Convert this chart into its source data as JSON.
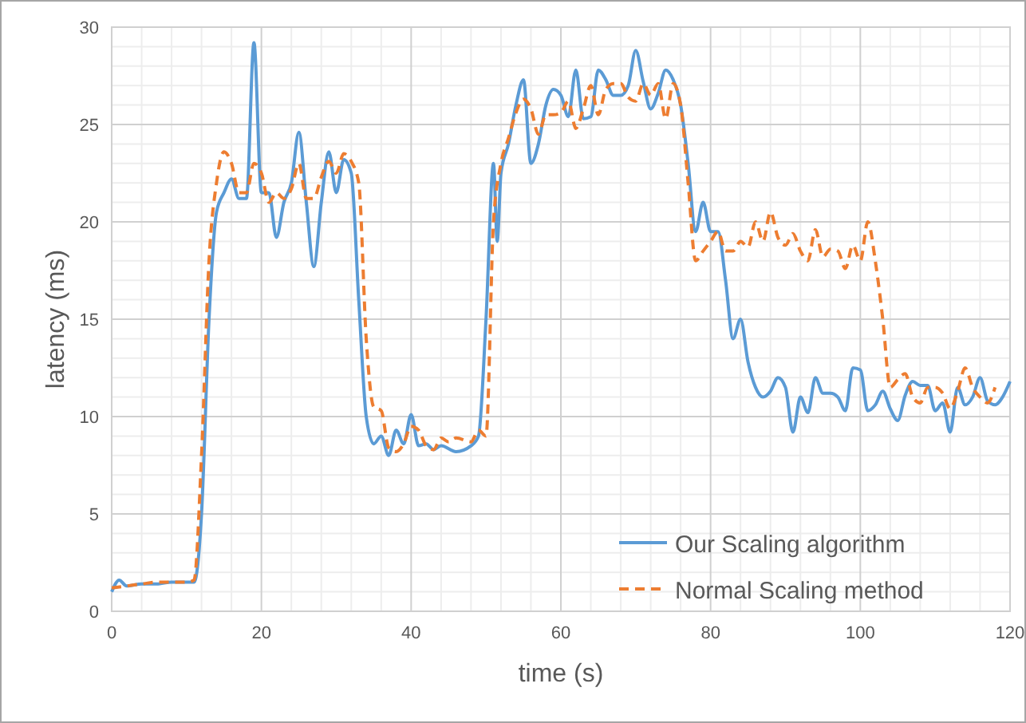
{
  "chart_data": {
    "type": "line",
    "xlabel": "time (s)",
    "ylabel": "latency (ms)",
    "xlim": [
      0,
      120
    ],
    "xticks": [
      0,
      20,
      40,
      60,
      80,
      100,
      120
    ],
    "ylim": [
      0,
      30
    ],
    "yticks": [
      0,
      5,
      10,
      15,
      20,
      25,
      30
    ],
    "grid": true,
    "legend": "bottom right",
    "marker": "none",
    "series": [
      {
        "name": "Our Scaling algorithm",
        "color": "#5b9bd5",
        "line_style": "solid",
        "x": [
          0,
          1,
          2,
          4,
          6,
          8,
          10,
          11,
          12,
          13,
          14,
          15,
          16,
          17,
          18,
          19,
          20,
          21,
          22,
          23,
          24,
          25,
          26,
          27,
          28,
          29,
          30,
          31,
          32,
          33,
          34,
          35,
          36,
          37,
          38,
          39,
          40,
          41,
          42,
          43,
          44,
          46,
          48,
          49,
          50,
          51,
          51.5,
          52,
          53,
          54,
          55,
          56,
          57,
          58,
          59,
          60,
          61,
          62,
          63,
          64,
          65,
          66,
          67,
          68,
          69,
          70,
          71,
          72,
          73,
          74,
          75,
          76,
          77,
          78,
          79,
          80,
          81,
          82,
          83,
          84,
          85,
          86,
          87,
          88,
          89,
          90,
          91,
          92,
          93,
          94,
          95,
          96,
          97,
          98,
          99,
          100,
          101,
          102,
          103,
          104,
          105,
          106,
          107,
          108,
          109,
          110,
          111,
          112,
          113,
          114,
          115,
          116,
          117,
          118,
          119,
          120
        ],
        "values": [
          1.0,
          1.6,
          1.3,
          1.4,
          1.4,
          1.5,
          1.5,
          1.5,
          5,
          15,
          20.5,
          21.5,
          22.2,
          21.2,
          21.2,
          29.2,
          21.5,
          21.5,
          19.2,
          21,
          22,
          24.6,
          21,
          17.7,
          21,
          23.6,
          21.5,
          23.2,
          22.5,
          16,
          10,
          8.6,
          9,
          8,
          9.3,
          8.6,
          10.1,
          8.5,
          8.6,
          8.3,
          8.5,
          8.2,
          8.5,
          9,
          15,
          23,
          19,
          22.5,
          24,
          26,
          27.3,
          23,
          24,
          26,
          26.8,
          26.5,
          25.4,
          27.8,
          25.3,
          25.4,
          27.8,
          27.3,
          26.5,
          26.5,
          27,
          28.8,
          27.2,
          25.8,
          26.6,
          27.8,
          27.3,
          26,
          23,
          19.5,
          21,
          19.5,
          19.5,
          17,
          14,
          15,
          12.8,
          11.5,
          11,
          11.3,
          12,
          11.5,
          9.2,
          11,
          10.2,
          12,
          11.2,
          11.2,
          11,
          10.3,
          12.5,
          12.4,
          10.3,
          10.6,
          11.3,
          10.4,
          9.8,
          11.1,
          11.8,
          11.6,
          11.6,
          10.3,
          10.7,
          9.2,
          11.5,
          10.6,
          11,
          12,
          10.8,
          10.6,
          11,
          11.8
        ]
      },
      {
        "name": "Normal Scaling method",
        "color": "#ed7d31",
        "line_style": "dashed",
        "x": [
          0,
          2,
          4,
          6,
          8,
          10,
          11,
          12,
          13,
          14,
          15,
          16,
          17,
          18,
          19,
          20,
          21,
          22,
          23,
          24,
          25,
          26,
          27,
          28,
          29,
          30,
          31,
          32,
          33,
          34,
          35,
          36,
          37,
          38,
          39,
          40,
          41,
          42,
          43,
          44,
          45,
          46,
          48,
          49,
          50,
          51,
          52,
          53,
          54,
          55,
          56,
          57,
          58,
          59,
          60,
          61,
          62,
          63,
          64,
          65,
          66,
          67,
          68,
          69,
          70,
          71,
          72,
          73,
          74,
          75,
          76,
          77,
          78,
          79,
          80,
          81,
          82,
          83,
          84,
          85,
          86,
          87,
          88,
          89,
          90,
          91,
          92,
          93,
          94,
          95,
          96,
          97,
          98,
          99,
          100,
          101,
          102,
          103,
          104,
          105,
          106,
          107,
          108,
          109,
          110,
          111,
          112,
          113,
          114,
          115,
          116,
          117,
          118
        ],
        "values": [
          1.2,
          1.3,
          1.4,
          1.5,
          1.5,
          1.5,
          1.6,
          8,
          18,
          22,
          23.6,
          23,
          21.5,
          21.5,
          23,
          22.5,
          21,
          21.5,
          21.2,
          21.7,
          23,
          21.2,
          21.2,
          22.3,
          23.1,
          22.5,
          23.5,
          23.1,
          22,
          14,
          10.5,
          10.3,
          8.4,
          8.2,
          8.6,
          9.5,
          9.3,
          8.5,
          8.3,
          8.9,
          8.7,
          8.9,
          8.7,
          9.3,
          9,
          20,
          23,
          24.3,
          25.6,
          26.3,
          25.8,
          24.5,
          25.5,
          25.5,
          25.6,
          26.2,
          24.8,
          25.8,
          27,
          25.5,
          26.8,
          27.1,
          27.1,
          26.4,
          26.2,
          27.1,
          26.5,
          27.1,
          25.3,
          27.1,
          26,
          22,
          18,
          18.5,
          19,
          19.5,
          18.5,
          18.5,
          19,
          18.7,
          20,
          19,
          20.5,
          19.2,
          18.8,
          19.4,
          18.5,
          18,
          19.6,
          18.2,
          18.6,
          18.5,
          17.6,
          18.8,
          18,
          20,
          18,
          15,
          11.5,
          11.9,
          12.2,
          11,
          10.7,
          11.5,
          11.5,
          11.2,
          10.4,
          11.3,
          12.5,
          11.5,
          11,
          10.7,
          11.5
        ]
      }
    ]
  }
}
